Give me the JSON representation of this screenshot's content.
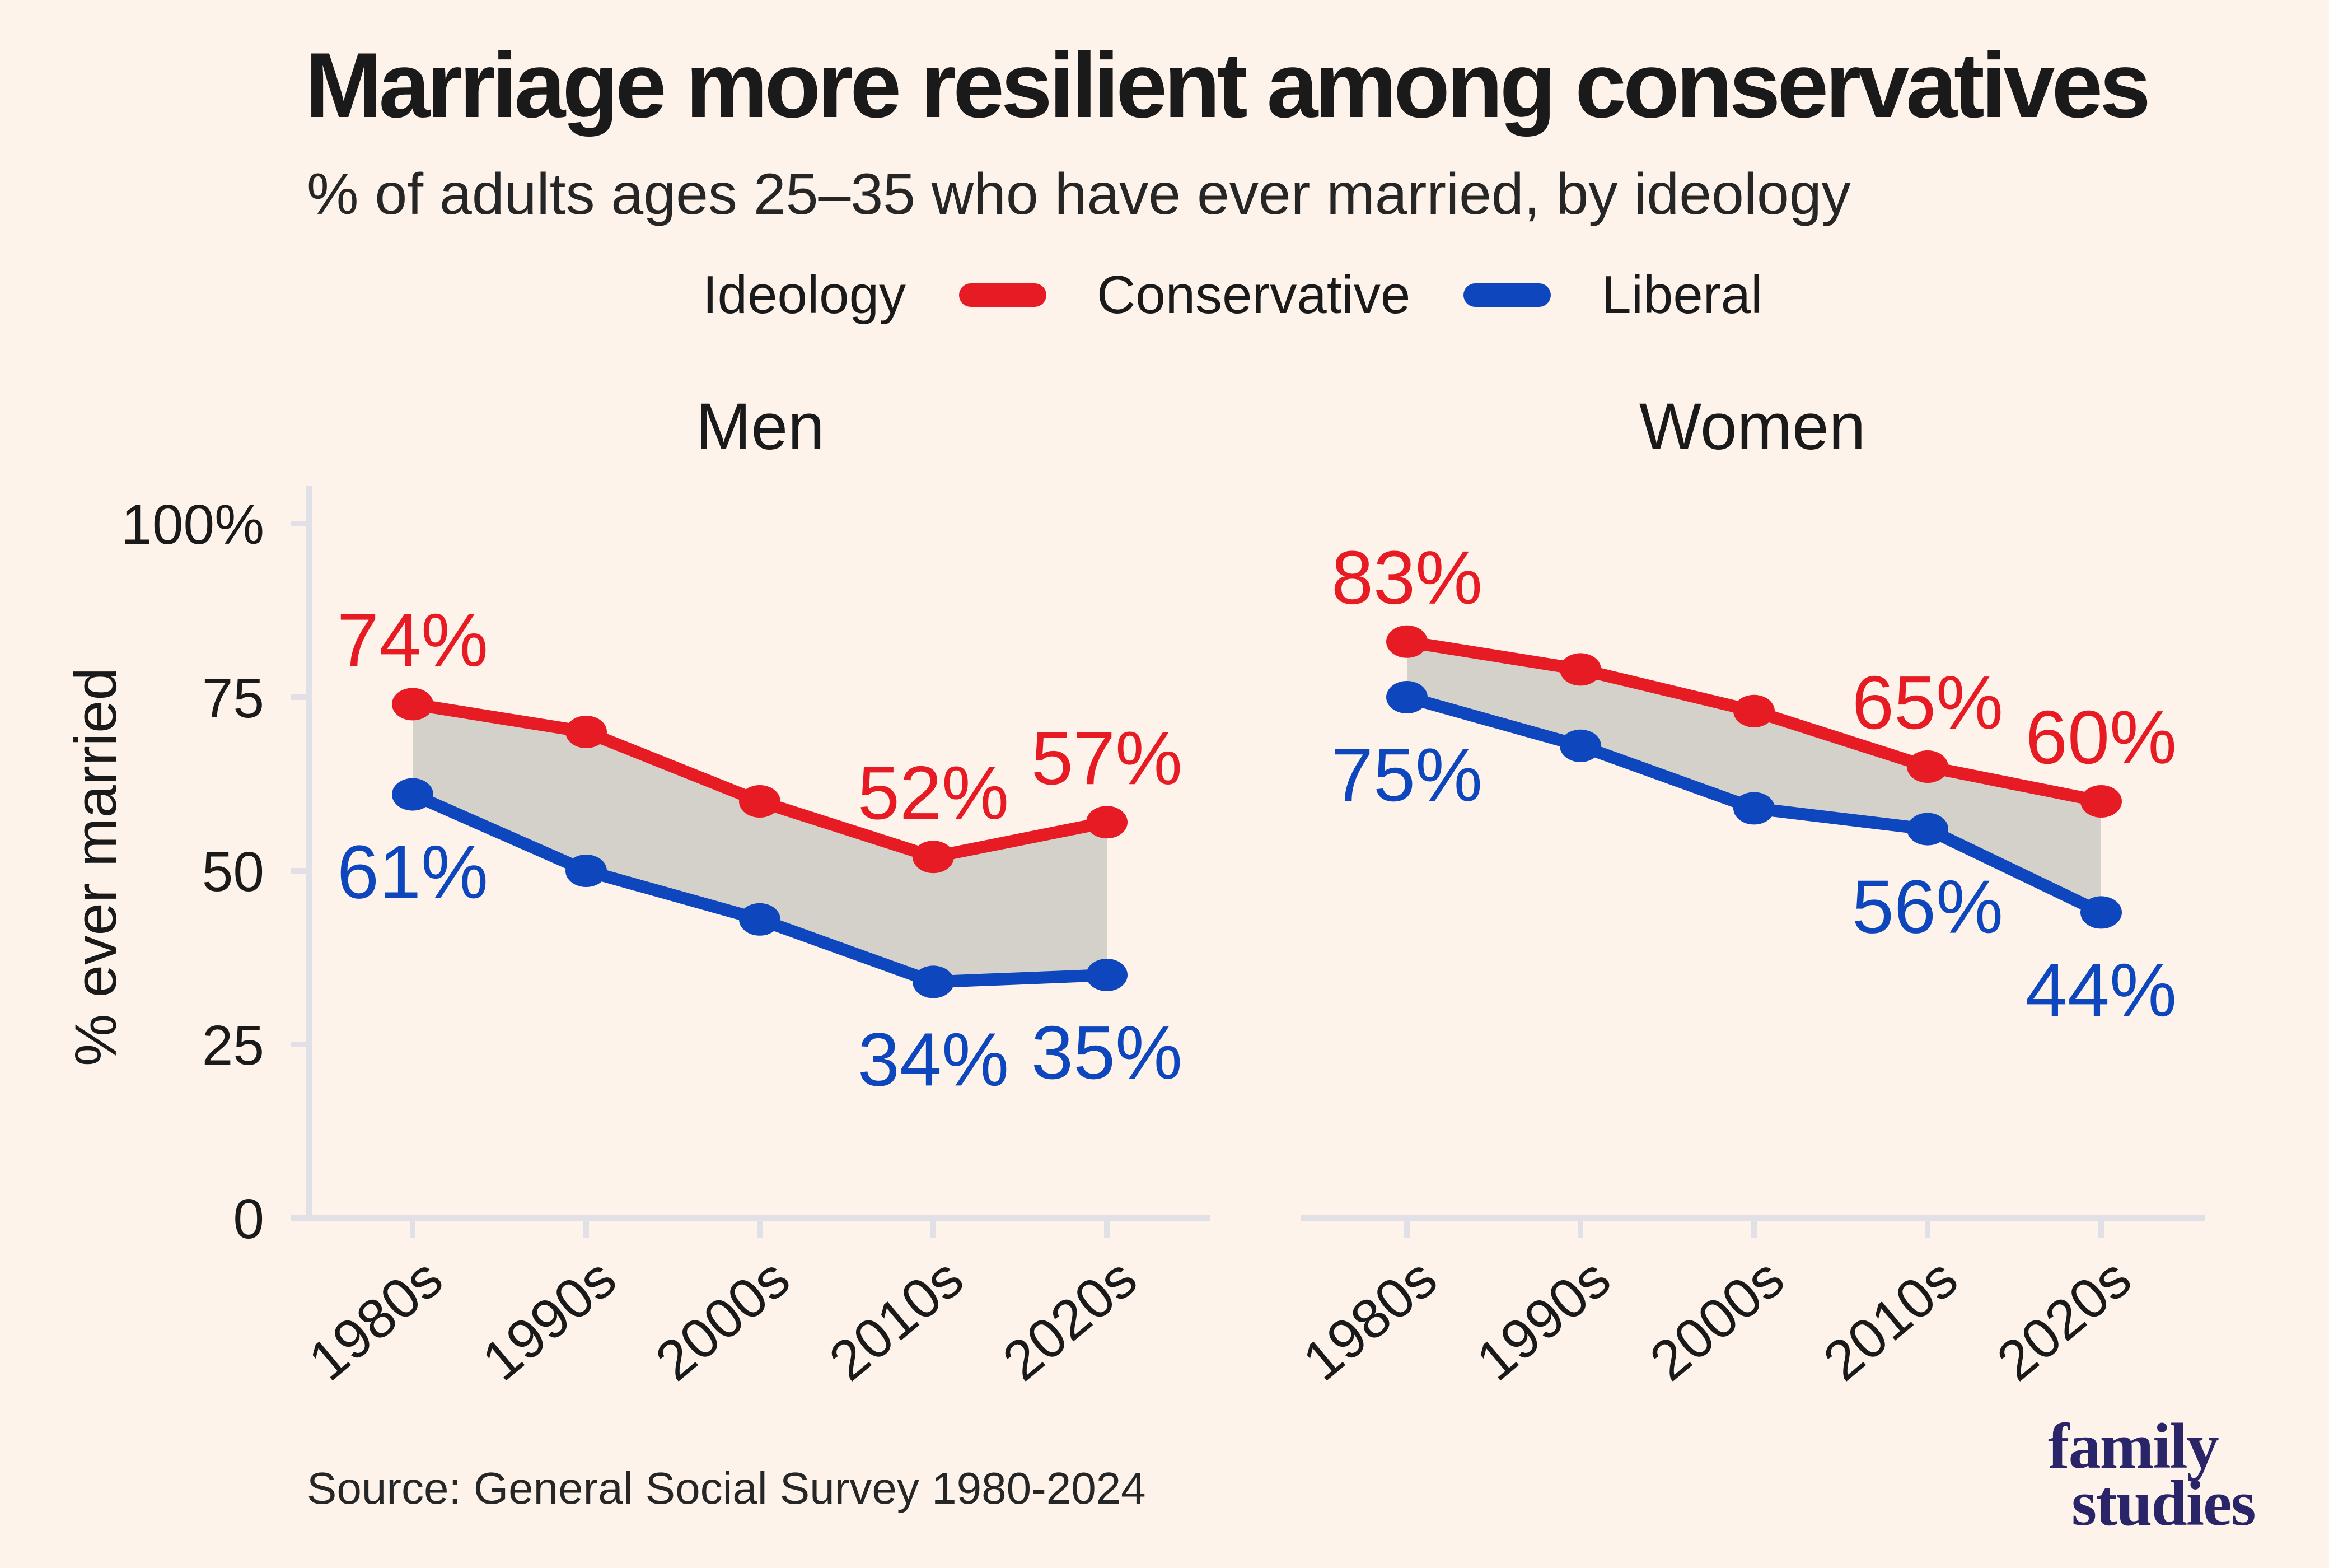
{
  "header": {
    "title": "Marriage more resilient among conservatives",
    "subtitle": "% of adults ages 25–35 who have ever married, by ideology"
  },
  "legend": {
    "title": "Ideology",
    "items": [
      {
        "label": "Conservative",
        "color": "#E61B23"
      },
      {
        "label": "Liberal",
        "color": "#0D46BD"
      }
    ]
  },
  "colors": {
    "background": "#FDF3EB",
    "conservative_red": "#E61B23",
    "liberal_blue": "#0D46BD",
    "band_gray": "#D4D1CB",
    "axis_gray": "#E2E0E7",
    "text_dark": "#1A1A1A",
    "logo_navy": "#2A2568"
  },
  "footer": {
    "source": "Source: General Social Survey 1980-2024",
    "logo_line1": "family",
    "logo_line2": "studies"
  },
  "chart_data": {
    "type": "line",
    "title": "Marriage more resilient among conservatives",
    "subtitle": "% of adults ages 25–35 who have ever married, by ideology",
    "xlabel": "",
    "ylabel": "% ever married",
    "ylim": [
      0,
      100
    ],
    "grid": false,
    "legend_position": "top",
    "legend_title": "Ideology",
    "band_between_series": true,
    "band_color": "#D4D1CB",
    "categories": [
      "1980s",
      "1990s",
      "2000s",
      "2010s",
      "2020s"
    ],
    "y_ticks": [
      {
        "value": 100,
        "label": "100%"
      },
      {
        "value": 75,
        "label": "75"
      },
      {
        "value": 50,
        "label": "50"
      },
      {
        "value": 25,
        "label": "25"
      },
      {
        "value": 0,
        "label": "0"
      }
    ],
    "facets": [
      {
        "label": "Men",
        "series": [
          {
            "name": "Conservative",
            "color": "#E61B23",
            "values": [
              74,
              70,
              60,
              52,
              57
            ],
            "point_labels": [
              "74%",
              null,
              null,
              "52%",
              "57%"
            ],
            "label_position": "above"
          },
          {
            "name": "Liberal",
            "color": "#0D46BD",
            "values": [
              61,
              50,
              43,
              34,
              35
            ],
            "point_labels": [
              "61%",
              null,
              null,
              "34%",
              "35%"
            ],
            "label_position": "below"
          }
        ]
      },
      {
        "label": "Women",
        "series": [
          {
            "name": "Conservative",
            "color": "#E61B23",
            "values": [
              83,
              79,
              73,
              65,
              60
            ],
            "point_labels": [
              "83%",
              null,
              null,
              "65%",
              "60%"
            ],
            "label_position": "above"
          },
          {
            "name": "Liberal",
            "color": "#0D46BD",
            "values": [
              75,
              68,
              59,
              56,
              44
            ],
            "point_labels": [
              "75%",
              null,
              null,
              "56%",
              "44%"
            ],
            "label_position": "below"
          }
        ]
      }
    ]
  }
}
